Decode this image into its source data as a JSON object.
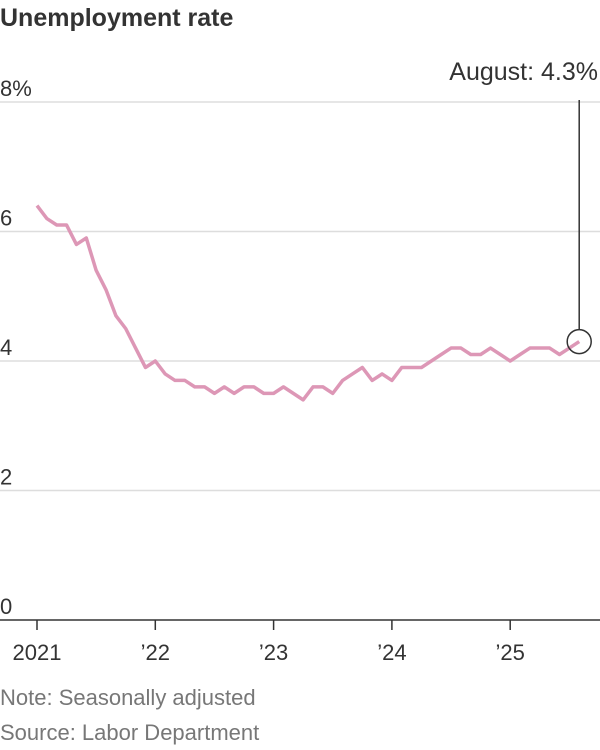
{
  "chart_data": {
    "type": "line",
    "title": "Unemployment rate",
    "xlabel": "",
    "ylabel": "",
    "ylim": [
      0,
      8
    ],
    "yticks": [
      0,
      2,
      4,
      6,
      8
    ],
    "ytick_labels": [
      "0",
      "2",
      "4",
      "6",
      "8%"
    ],
    "xticks": [
      2021,
      2022,
      2023,
      2024,
      2025
    ],
    "xtick_labels": [
      "2021",
      "’22",
      "’23",
      "’24",
      "’25"
    ],
    "grid": true,
    "series": [
      {
        "color": "#dd97b6",
        "start": "2021-01",
        "frequency": "monthly",
        "values": [
          6.4,
          6.2,
          6.1,
          6.1,
          5.8,
          5.9,
          5.4,
          5.1,
          4.7,
          4.5,
          4.2,
          3.9,
          4.0,
          3.8,
          3.7,
          3.7,
          3.6,
          3.6,
          3.5,
          3.6,
          3.5,
          3.6,
          3.6,
          3.5,
          3.5,
          3.6,
          3.5,
          3.4,
          3.6,
          3.6,
          3.5,
          3.7,
          3.8,
          3.9,
          3.7,
          3.8,
          3.7,
          3.9,
          3.9,
          3.9,
          4.0,
          4.1,
          4.2,
          4.2,
          4.1,
          4.1,
          4.2,
          4.1,
          4.0,
          4.1,
          4.2,
          4.2,
          4.2,
          4.1,
          4.2,
          4.3
        ]
      }
    ],
    "annotation": "August: 4.3%"
  },
  "notes": {
    "note": "Note: Seasonally adjusted",
    "source": "Source: Labor Department"
  }
}
